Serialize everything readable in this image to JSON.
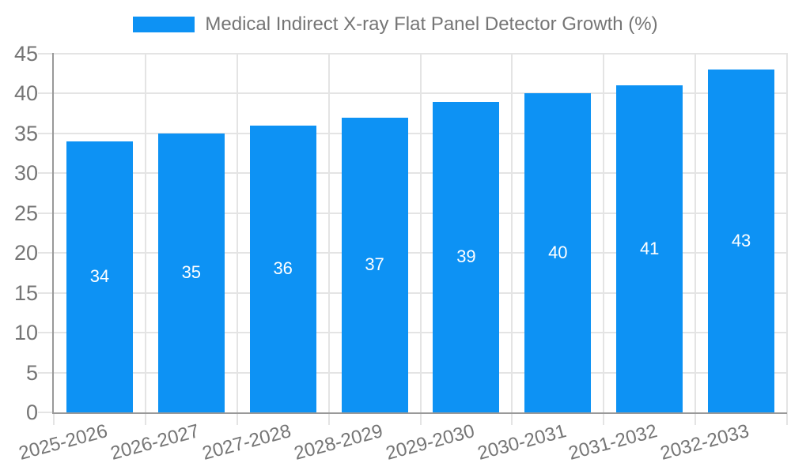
{
  "chart_data": {
    "type": "bar",
    "title": "Medical Indirect X-ray Flat Panel Detector Growth (%)",
    "categories": [
      "2025-2026",
      "2026-2027",
      "2027-2028",
      "2028-2029",
      "2029-2030",
      "2030-2031",
      "2031-2032",
      "2032-2033"
    ],
    "values": [
      34,
      35,
      36,
      37,
      39,
      40,
      41,
      43
    ],
    "xlabel": "",
    "ylabel": "",
    "ylim": [
      0,
      45
    ],
    "ytick_step": 5,
    "ytick_labels": [
      "0",
      "5",
      "10",
      "15",
      "20",
      "25",
      "30",
      "35",
      "40",
      "45"
    ],
    "grid": true,
    "legend_position": "top-center",
    "xtick_rotation_deg": -15,
    "bar_labels_shown": true,
    "colors": {
      "bar": "#0D92F4",
      "bar_label": "#FFFFFF",
      "axis": "#999999",
      "grid": "#E4E4E4",
      "tick_text": "#757575",
      "title_text": "#757575",
      "background": "#FFFFFF"
    }
  }
}
